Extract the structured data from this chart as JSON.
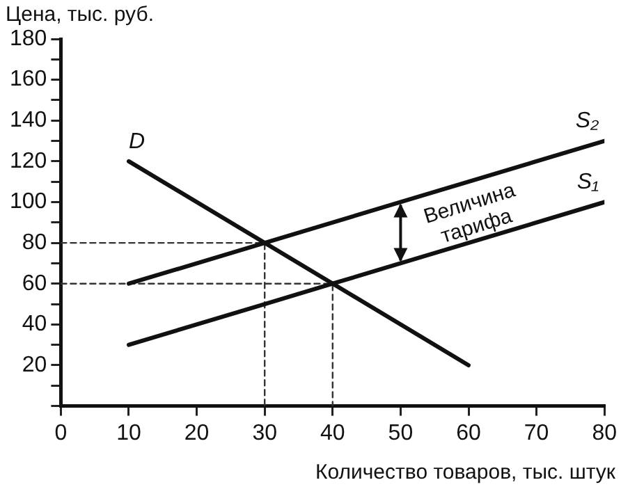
{
  "chart_data": {
    "type": "line",
    "xlabel": "Количество товаров, тыс. штук",
    "ylabel": "Цена, тыс. руб.",
    "xlim": [
      0,
      80
    ],
    "xticks": [
      0,
      10,
      20,
      30,
      40,
      50,
      60,
      70,
      80
    ],
    "ylim": [
      0,
      180
    ],
    "yticks": [
      {
        "value": 0,
        "label": null
      },
      {
        "value": 10,
        "label": null
      },
      20,
      {
        "value": 30,
        "label": null
      },
      40,
      {
        "value": 50,
        "label": null
      },
      60,
      {
        "value": 70,
        "label": null
      },
      80,
      {
        "value": 90,
        "label": null
      },
      100,
      {
        "value": 110,
        "label": null
      },
      120,
      {
        "value": 130,
        "label": null
      },
      140,
      {
        "value": 150,
        "label": null
      },
      160,
      {
        "value": 170,
        "label": null
      },
      180
    ],
    "grid": false,
    "legend": false,
    "marker": "none",
    "annotations": [
      {
        "text": "Величина тарифа",
        "x": 50,
        "y": 100
      }
    ],
    "series": [
      {
        "name": "D",
        "color": "#111111",
        "x": [
          10,
          60
        ],
        "values": [
          120,
          20
        ]
      },
      {
        "name": "S₂",
        "color": "#111111",
        "x": [
          10,
          30,
          50,
          80
        ],
        "values": [
          60,
          80,
          100,
          130
        ]
      },
      {
        "name": "S₁",
        "color": "#111111",
        "x": [
          10,
          30,
          40,
          50,
          80
        ],
        "values": [
          30,
          50,
          60,
          70,
          100
        ]
      },
      {
        "color": "#333333",
        "line_style": "dashed",
        "x": [
          0,
          30,
          30
        ],
        "values": [
          80,
          80,
          0
        ]
      },
      {
        "color": "#333333",
        "line_style": "dashed",
        "x": [
          0,
          40,
          40
        ],
        "values": [
          60,
          60,
          0
        ]
      }
    ]
  }
}
